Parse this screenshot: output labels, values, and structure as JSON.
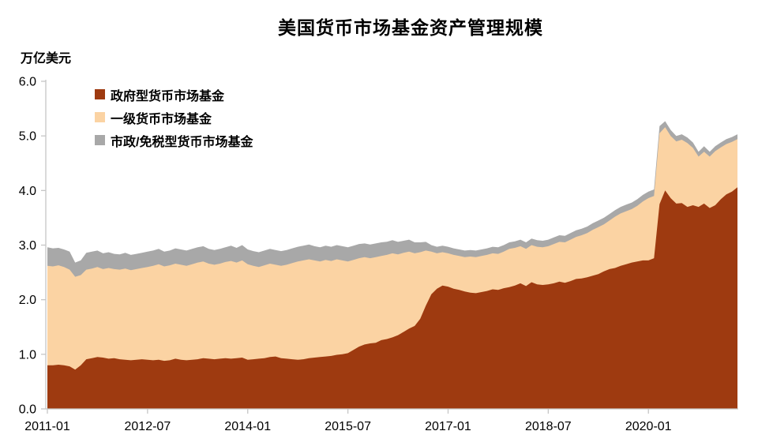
{
  "chart": {
    "title": "美国货币市场基金资产管理规模",
    "y_unit_label": "万亿美元"
  },
  "chart_data": {
    "type": "area",
    "stacked": true,
    "title": "美国货币市场基金资产管理规模",
    "ylabel": "万亿美元",
    "xlabel": "",
    "ylim": [
      0,
      6
    ],
    "grid": false,
    "legend_position": "top-left-inside",
    "y_ticks": [
      "0.0",
      "1.0",
      "2.0",
      "3.0",
      "4.0",
      "5.0",
      "6.0"
    ],
    "x_ticks": [
      {
        "label": "2011-01",
        "month_index": 0
      },
      {
        "label": "2012-07",
        "month_index": 18
      },
      {
        "label": "2014-01",
        "month_index": 36
      },
      {
        "label": "2015-07",
        "month_index": 54
      },
      {
        "label": "2017-01",
        "month_index": 72
      },
      {
        "label": "2018-07",
        "month_index": 90
      },
      {
        "label": "2020-01",
        "month_index": 108
      }
    ],
    "axis_color": "#c6c6c6",
    "text_color": "#000000",
    "x_months": [
      "2011-01",
      "2011-02",
      "2011-03",
      "2011-04",
      "2011-05",
      "2011-06",
      "2011-07",
      "2011-08",
      "2011-09",
      "2011-10",
      "2011-11",
      "2011-12",
      "2012-01",
      "2012-02",
      "2012-03",
      "2012-04",
      "2012-05",
      "2012-06",
      "2012-07",
      "2012-08",
      "2012-09",
      "2012-10",
      "2012-11",
      "2012-12",
      "2013-01",
      "2013-02",
      "2013-03",
      "2013-04",
      "2013-05",
      "2013-06",
      "2013-07",
      "2013-08",
      "2013-09",
      "2013-10",
      "2013-11",
      "2013-12",
      "2014-01",
      "2014-02",
      "2014-03",
      "2014-04",
      "2014-05",
      "2014-06",
      "2014-07",
      "2014-08",
      "2014-09",
      "2014-10",
      "2014-11",
      "2014-12",
      "2015-01",
      "2015-02",
      "2015-03",
      "2015-04",
      "2015-05",
      "2015-06",
      "2015-07",
      "2015-08",
      "2015-09",
      "2015-10",
      "2015-11",
      "2015-12",
      "2016-01",
      "2016-02",
      "2016-03",
      "2016-04",
      "2016-05",
      "2016-06",
      "2016-07",
      "2016-08",
      "2016-09",
      "2016-10",
      "2016-11",
      "2016-12",
      "2017-01",
      "2017-02",
      "2017-03",
      "2017-04",
      "2017-05",
      "2017-06",
      "2017-07",
      "2017-08",
      "2017-09",
      "2017-10",
      "2017-11",
      "2017-12",
      "2018-01",
      "2018-02",
      "2018-03",
      "2018-04",
      "2018-05",
      "2018-06",
      "2018-07",
      "2018-08",
      "2018-09",
      "2018-10",
      "2018-11",
      "2018-12",
      "2019-01",
      "2019-02",
      "2019-03",
      "2019-04",
      "2019-05",
      "2019-06",
      "2019-07",
      "2019-08",
      "2019-09",
      "2019-10",
      "2019-11",
      "2019-12",
      "2020-01",
      "2020-02",
      "2020-03",
      "2020-04",
      "2020-05",
      "2020-06",
      "2020-07",
      "2020-08",
      "2020-09",
      "2020-10",
      "2020-11",
      "2020-12",
      "2021-01",
      "2021-02",
      "2021-03",
      "2021-04",
      "2021-05"
    ],
    "series": [
      {
        "id": "government",
        "name": "政府型货币市场基金",
        "color": "#9e3a10",
        "values": [
          0.8,
          0.8,
          0.81,
          0.8,
          0.78,
          0.72,
          0.8,
          0.91,
          0.93,
          0.95,
          0.94,
          0.92,
          0.93,
          0.91,
          0.9,
          0.89,
          0.9,
          0.91,
          0.9,
          0.89,
          0.9,
          0.88,
          0.89,
          0.92,
          0.9,
          0.89,
          0.9,
          0.91,
          0.93,
          0.92,
          0.91,
          0.92,
          0.93,
          0.92,
          0.93,
          0.94,
          0.9,
          0.91,
          0.92,
          0.93,
          0.95,
          0.96,
          0.93,
          0.92,
          0.91,
          0.9,
          0.91,
          0.93,
          0.94,
          0.95,
          0.96,
          0.97,
          0.99,
          1.0,
          1.02,
          1.08,
          1.14,
          1.18,
          1.2,
          1.21,
          1.26,
          1.28,
          1.31,
          1.35,
          1.41,
          1.47,
          1.52,
          1.65,
          1.89,
          2.1,
          2.2,
          2.26,
          2.24,
          2.2,
          2.18,
          2.15,
          2.13,
          2.12,
          2.14,
          2.16,
          2.19,
          2.18,
          2.21,
          2.23,
          2.26,
          2.3,
          2.25,
          2.32,
          2.28,
          2.27,
          2.28,
          2.3,
          2.33,
          2.31,
          2.34,
          2.38,
          2.39,
          2.41,
          2.44,
          2.47,
          2.52,
          2.56,
          2.58,
          2.62,
          2.65,
          2.68,
          2.7,
          2.72,
          2.72,
          2.76,
          3.75,
          4.0,
          3.86,
          3.76,
          3.77,
          3.7,
          3.73,
          3.7,
          3.76,
          3.68,
          3.73,
          3.84,
          3.93,
          3.98,
          4.06
        ]
      },
      {
        "id": "prime",
        "name": "一级货币市场基金",
        "color": "#fbd3a3",
        "values": [
          1.82,
          1.81,
          1.82,
          1.8,
          1.77,
          1.7,
          1.65,
          1.64,
          1.64,
          1.65,
          1.62,
          1.66,
          1.63,
          1.64,
          1.67,
          1.65,
          1.66,
          1.67,
          1.7,
          1.73,
          1.75,
          1.73,
          1.74,
          1.74,
          1.74,
          1.73,
          1.75,
          1.77,
          1.77,
          1.74,
          1.73,
          1.74,
          1.76,
          1.79,
          1.75,
          1.78,
          1.75,
          1.71,
          1.68,
          1.7,
          1.71,
          1.68,
          1.69,
          1.72,
          1.76,
          1.8,
          1.81,
          1.81,
          1.78,
          1.75,
          1.77,
          1.74,
          1.75,
          1.72,
          1.68,
          1.65,
          1.62,
          1.6,
          1.56,
          1.57,
          1.54,
          1.54,
          1.54,
          1.48,
          1.45,
          1.41,
          1.33,
          1.22,
          1.01,
          0.78,
          0.65,
          0.61,
          0.61,
          0.62,
          0.62,
          0.63,
          0.66,
          0.66,
          0.66,
          0.66,
          0.66,
          0.66,
          0.67,
          0.7,
          0.69,
          0.68,
          0.68,
          0.68,
          0.69,
          0.69,
          0.7,
          0.72,
          0.73,
          0.74,
          0.76,
          0.77,
          0.79,
          0.81,
          0.84,
          0.86,
          0.86,
          0.89,
          0.94,
          0.96,
          0.97,
          0.98,
          1.02,
          1.08,
          1.14,
          1.14,
          1.3,
          1.16,
          1.14,
          1.14,
          1.16,
          1.17,
          1.05,
          0.92,
          0.95,
          0.94,
          0.99,
          0.95,
          0.92,
          0.91,
          0.88
        ]
      },
      {
        "id": "municipal-tax-exempt",
        "name": "市政/免税型货币市场基金",
        "color": "#a8a8a8",
        "values": [
          0.34,
          0.33,
          0.32,
          0.32,
          0.33,
          0.26,
          0.27,
          0.31,
          0.31,
          0.3,
          0.29,
          0.29,
          0.28,
          0.28,
          0.29,
          0.28,
          0.28,
          0.28,
          0.28,
          0.28,
          0.28,
          0.27,
          0.27,
          0.28,
          0.28,
          0.28,
          0.28,
          0.28,
          0.28,
          0.27,
          0.27,
          0.27,
          0.27,
          0.28,
          0.27,
          0.28,
          0.27,
          0.27,
          0.27,
          0.27,
          0.27,
          0.27,
          0.27,
          0.27,
          0.27,
          0.27,
          0.27,
          0.27,
          0.26,
          0.26,
          0.26,
          0.26,
          0.26,
          0.26,
          0.26,
          0.26,
          0.26,
          0.25,
          0.25,
          0.25,
          0.25,
          0.24,
          0.24,
          0.23,
          0.22,
          0.22,
          0.2,
          0.18,
          0.16,
          0.12,
          0.12,
          0.12,
          0.12,
          0.12,
          0.12,
          0.12,
          0.12,
          0.12,
          0.12,
          0.12,
          0.12,
          0.12,
          0.12,
          0.12,
          0.12,
          0.12,
          0.12,
          0.12,
          0.12,
          0.12,
          0.12,
          0.12,
          0.12,
          0.12,
          0.12,
          0.12,
          0.12,
          0.12,
          0.12,
          0.12,
          0.12,
          0.12,
          0.12,
          0.12,
          0.12,
          0.12,
          0.12,
          0.12,
          0.12,
          0.12,
          0.13,
          0.11,
          0.11,
          0.1,
          0.1,
          0.1,
          0.1,
          0.09,
          0.1,
          0.09,
          0.09,
          0.09,
          0.09,
          0.09,
          0.09
        ]
      }
    ]
  }
}
